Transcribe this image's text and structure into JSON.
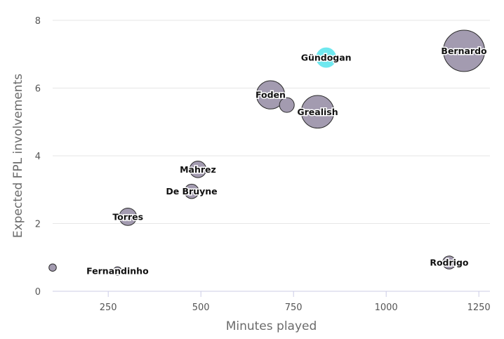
{
  "chart_data": {
    "type": "scatter",
    "title": "",
    "xlabel": "Minutes played",
    "ylabel": "Expected FPL involvements",
    "xlim": [
      100,
      1280
    ],
    "ylim": [
      0,
      8
    ],
    "xticks": [
      250,
      500,
      750,
      1000,
      1250
    ],
    "yticks": [
      0,
      2,
      4,
      6,
      8
    ],
    "grid": "horizontal",
    "highlight_color": "#6fe8ef",
    "bubble_color": "#a39bb0",
    "points": [
      {
        "label": "Bernardo",
        "x": 1210,
        "y": 7.1,
        "size": 9.5
      },
      {
        "label": "Gündogan",
        "x": 838,
        "y": 6.9,
        "size": 4.5,
        "highlight": true
      },
      {
        "label": "Foden",
        "x": 688,
        "y": 5.8,
        "size": 6.5
      },
      {
        "label": "",
        "x": 732,
        "y": 5.5,
        "size": 3.4
      },
      {
        "label": "Grealish",
        "x": 815,
        "y": 5.3,
        "size": 7.5
      },
      {
        "label": "Mahrez",
        "x": 492,
        "y": 3.6,
        "size": 3.8
      },
      {
        "label": "De Bruyne",
        "x": 475,
        "y": 2.95,
        "size": 3.3
      },
      {
        "label": "Torres",
        "x": 303,
        "y": 2.2,
        "size": 4.0
      },
      {
        "label": "",
        "x": 100,
        "y": 0.7,
        "size": 1.7
      },
      {
        "label": "Fernandinho",
        "x": 275,
        "y": 0.6,
        "size": 1.9
      },
      {
        "label": "Rodrigo",
        "x": 1170,
        "y": 0.85,
        "size": 3.0
      }
    ]
  }
}
